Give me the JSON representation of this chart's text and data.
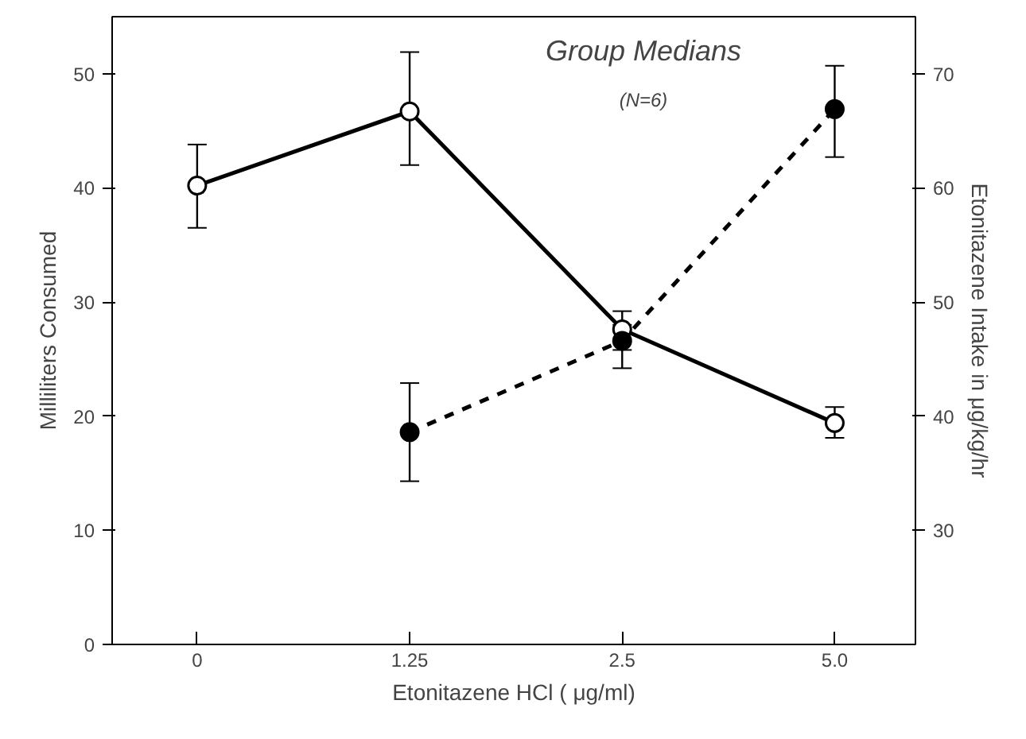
{
  "chart_data": {
    "type": "line",
    "categories": [
      "0",
      "1.25",
      "2.5",
      "5.0"
    ],
    "xlabel": "Etonitazene HCl ( μg/ml)",
    "ylabel": "Milliliters Consumed",
    "y2label": "Etonitazene Intake in μg/kg/hr",
    "annotations": [
      "Group Medians",
      "(N=6)"
    ],
    "ylim": [
      0,
      55
    ],
    "yticks": [
      0,
      10,
      20,
      30,
      40,
      50
    ],
    "y2lim": [
      20,
      75
    ],
    "y2ticks": [
      30,
      40,
      50,
      60,
      70
    ],
    "grid": false,
    "marker": "circle",
    "series": [
      {
        "color": "#000000",
        "line_style": "solid",
        "values": [
          40.2,
          46.7,
          27.6,
          19.4
        ],
        "errors": [
          [
            36.5,
            43.8
          ],
          [
            42.0,
            51.9
          ],
          [
            25.8,
            29.2
          ],
          [
            18.1,
            20.8
          ]
        ]
      },
      {
        "color": "#000000",
        "line_style": "dashed",
        "axis": "y2",
        "values": [
          null,
          38.6,
          46.6,
          66.9
        ],
        "errors": [
          null,
          [
            34.3,
            42.9
          ],
          [
            44.2,
            48.0
          ],
          [
            62.7,
            70.7
          ]
        ]
      }
    ]
  }
}
